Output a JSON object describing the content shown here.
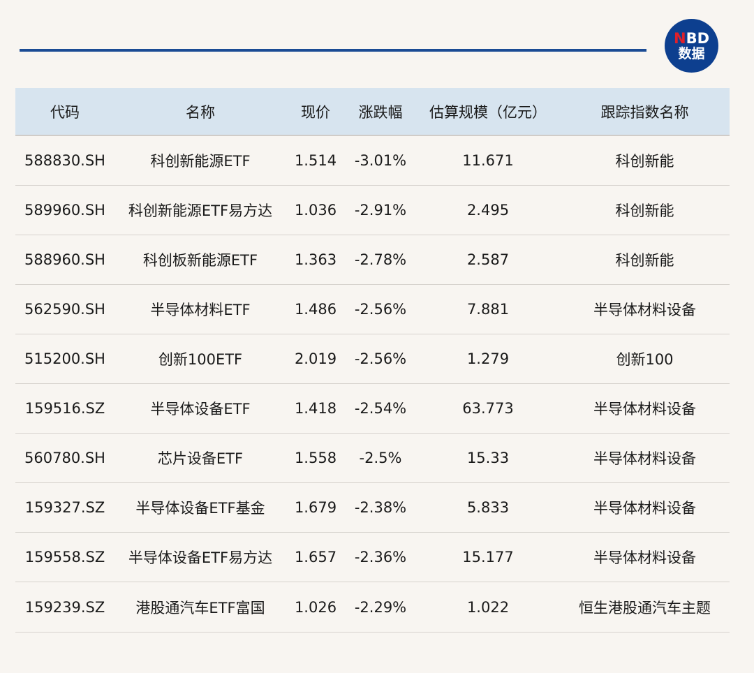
{
  "logo": {
    "line1_n": "N",
    "line1_rest": "BD",
    "line2": "数据"
  },
  "brand_color": "#1b4b94",
  "table": {
    "headers": [
      "代码",
      "名称",
      "现价",
      "涨跌幅",
      "估算规模（亿元）",
      "跟踪指数名称"
    ],
    "rows": [
      [
        "588830.SH",
        "科创新能源ETF",
        "1.514",
        "-3.01%",
        "11.671",
        "科创新能"
      ],
      [
        "589960.SH",
        "科创新能源ETF易方达",
        "1.036",
        "-2.91%",
        "2.495",
        "科创新能"
      ],
      [
        "588960.SH",
        "科创板新能源ETF",
        "1.363",
        "-2.78%",
        "2.587",
        "科创新能"
      ],
      [
        "562590.SH",
        "半导体材料ETF",
        "1.486",
        "-2.56%",
        "7.881",
        "半导体材料设备"
      ],
      [
        "515200.SH",
        "创新100ETF",
        "2.019",
        "-2.56%",
        "1.279",
        "创新100"
      ],
      [
        "159516.SZ",
        "半导体设备ETF",
        "1.418",
        "-2.54%",
        "63.773",
        "半导体材料设备"
      ],
      [
        "560780.SH",
        "芯片设备ETF",
        "1.558",
        "-2.5%",
        "15.33",
        "半导体材料设备"
      ],
      [
        "159327.SZ",
        "半导体设备ETF基金",
        "1.679",
        "-2.38%",
        "5.833",
        "半导体材料设备"
      ],
      [
        "159558.SZ",
        "半导体设备ETF易方达",
        "1.657",
        "-2.36%",
        "15.177",
        "半导体材料设备"
      ],
      [
        "159239.SZ",
        "港股通汽车ETF富国",
        "1.026",
        "-2.29%",
        "1.022",
        "恒生港股通汽车主题"
      ]
    ]
  }
}
